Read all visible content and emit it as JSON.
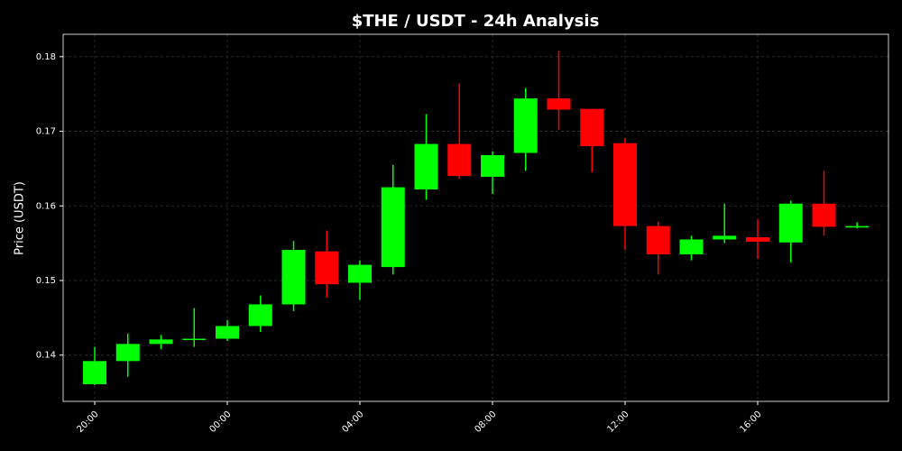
{
  "chart_data": {
    "type": "candlestick",
    "title": "$THE / USDT - 24h Analysis",
    "y_label": "Price (USDT)",
    "categories": [
      "20:00",
      null,
      null,
      null,
      "00:00",
      null,
      null,
      null,
      "04:00",
      null,
      null,
      null,
      "08:00",
      null,
      null,
      null,
      "12:00",
      null,
      null,
      null,
      "16:00",
      null,
      null,
      null
    ],
    "open": [
      0.1361,
      0.1392,
      0.1415,
      0.1421,
      0.1422,
      0.1439,
      0.1468,
      0.1539,
      0.1497,
      0.1518,
      0.1622,
      0.1683,
      0.1639,
      0.1671,
      0.1744,
      0.173,
      0.1684,
      0.1573,
      0.1535,
      0.1555,
      0.1558,
      0.1551,
      0.1603,
      0.1571
    ],
    "high": [
      0.1411,
      0.1429,
      0.1427,
      0.1463,
      0.1447,
      0.148,
      0.1553,
      0.1567,
      0.1527,
      0.1655,
      0.1723,
      0.1764,
      0.1673,
      0.1758,
      0.1808,
      0.173,
      0.1691,
      0.1579,
      0.156,
      0.1603,
      0.1582,
      0.1607,
      0.1647,
      0.1578
    ],
    "low": [
      0.136,
      0.1371,
      0.1408,
      0.1411,
      0.1419,
      0.1431,
      0.1459,
      0.1477,
      0.1474,
      0.1508,
      0.1608,
      0.1636,
      0.1616,
      0.1647,
      0.1702,
      0.1645,
      0.1541,
      0.1508,
      0.1527,
      0.155,
      0.1529,
      0.1524,
      0.156,
      0.157
    ],
    "close": [
      0.1392,
      0.1415,
      0.1421,
      0.1422,
      0.1439,
      0.1468,
      0.1541,
      0.1495,
      0.1521,
      0.1625,
      0.1683,
      0.164,
      0.1668,
      0.1744,
      0.1729,
      0.168,
      0.1573,
      0.1535,
      0.1555,
      0.156,
      0.1552,
      0.1603,
      0.1572,
      0.1573
    ],
    "up_color": "#00ff00",
    "down_color": "#ff0000",
    "ylim": [
      0.1338,
      0.183
    ],
    "yticks": [
      0.14,
      0.15,
      0.16,
      0.17,
      0.18
    ],
    "grid": true
  }
}
